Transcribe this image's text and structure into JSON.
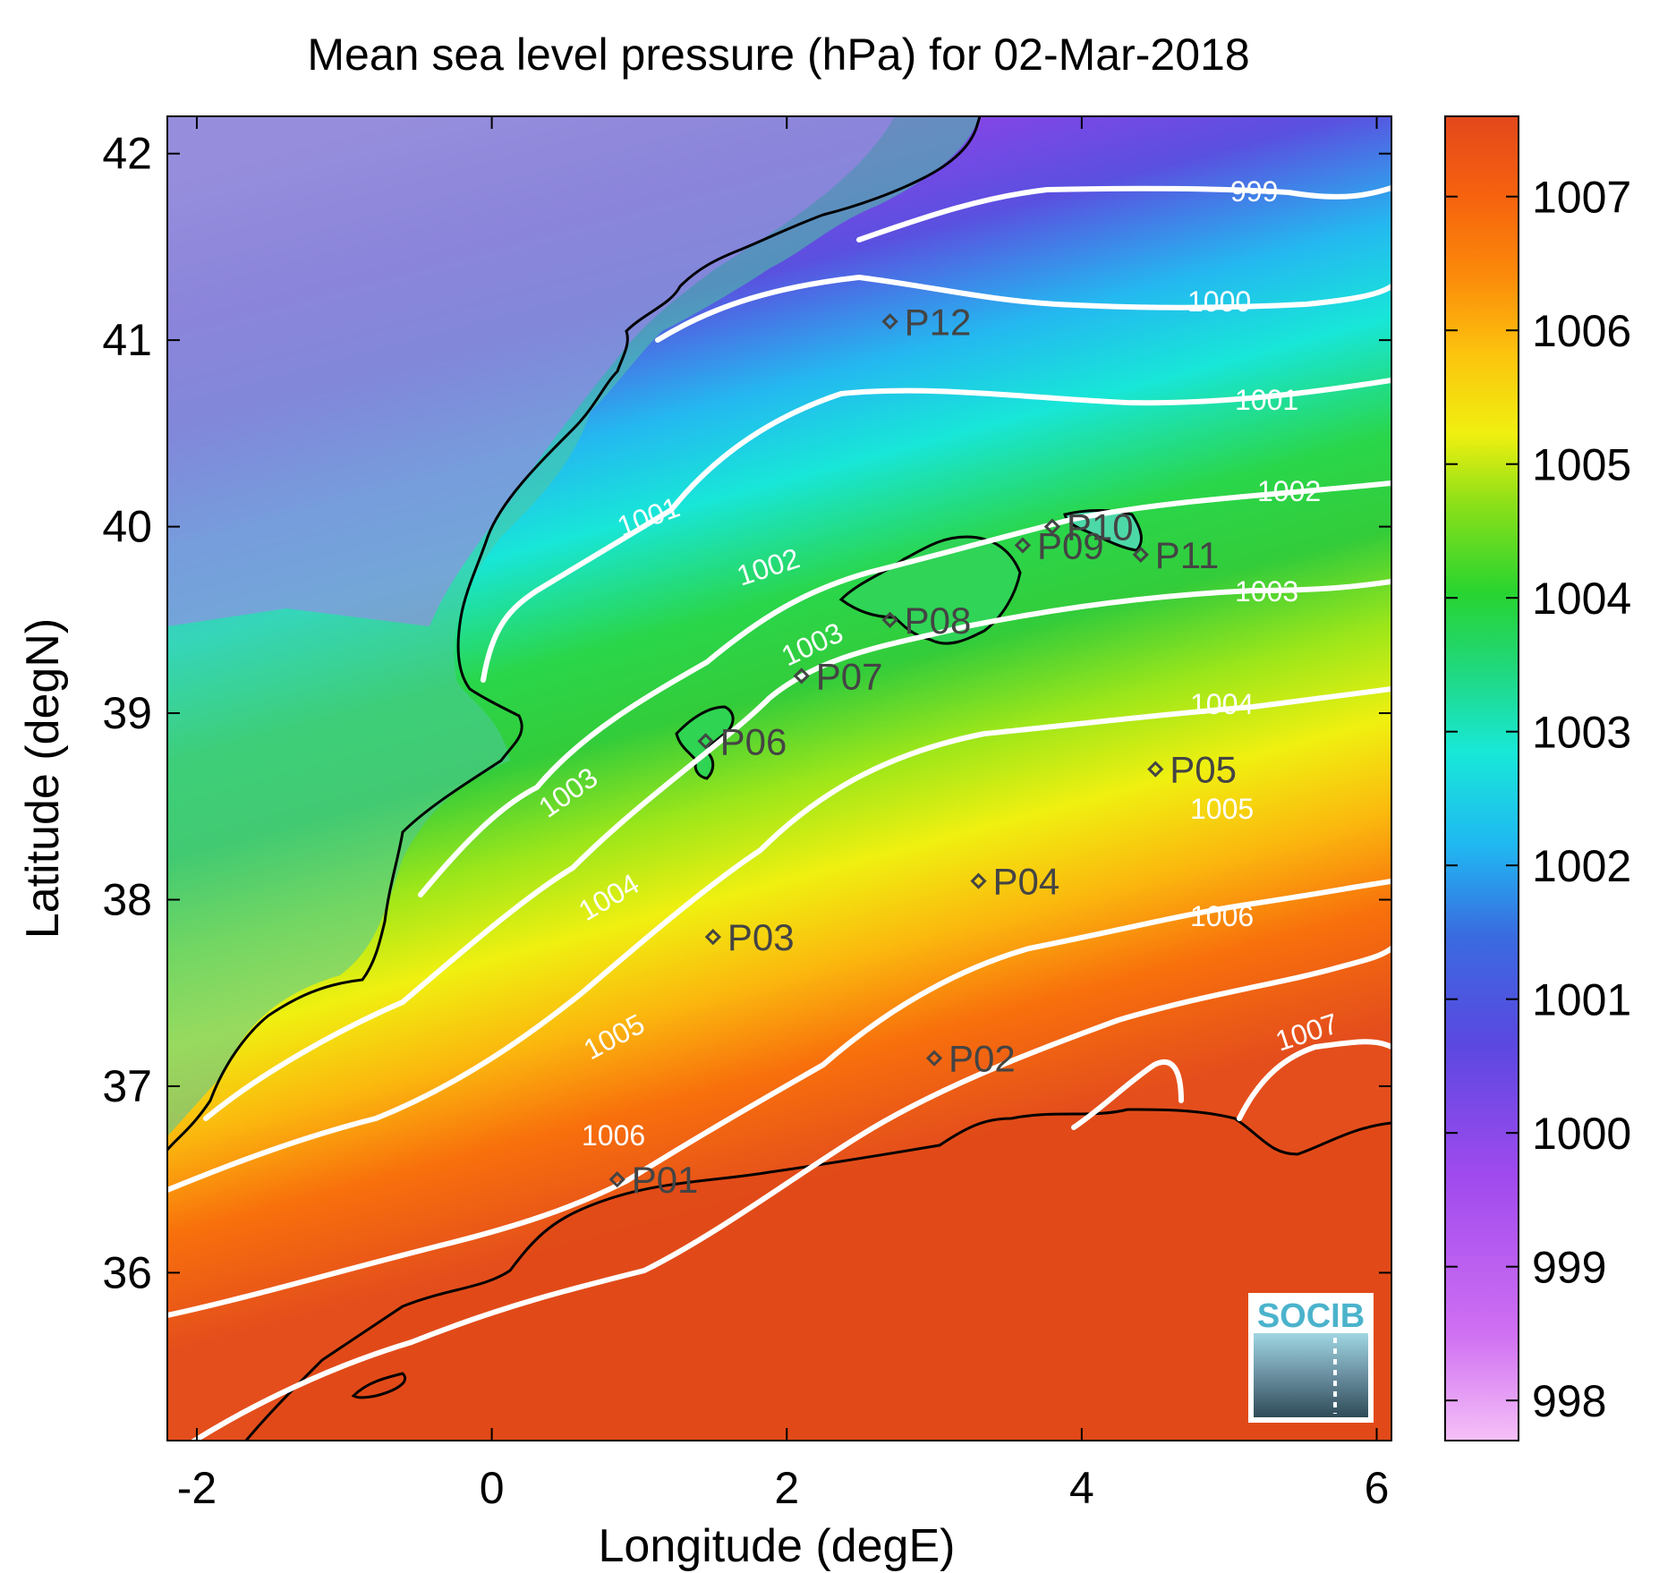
{
  "title": "Mean sea level pressure (hPa) for 02-Mar-2018",
  "x_axis": {
    "label": "Longitude (degE)",
    "ticks": [
      "-2",
      "0",
      "2",
      "4",
      "6"
    ],
    "tick_values": [
      -2,
      0,
      2,
      4,
      6
    ]
  },
  "y_axis": {
    "label": "Latitude (degN)",
    "ticks": [
      "36",
      "37",
      "38",
      "39",
      "40",
      "41",
      "42"
    ],
    "tick_values": [
      36,
      37,
      38,
      39,
      40,
      41,
      42
    ]
  },
  "lon_range": [
    -2.2,
    6.1
  ],
  "lat_range": [
    35.1,
    42.2
  ],
  "colorbar": {
    "ticks": [
      "998",
      "999",
      "1000",
      "1001",
      "1002",
      "1003",
      "1004",
      "1005",
      "1006",
      "1007"
    ],
    "tick_values": [
      998,
      999,
      1000,
      1001,
      1002,
      1003,
      1004,
      1005,
      1006,
      1007
    ],
    "range": [
      997.7,
      1007.6
    ],
    "colors": [
      "#f2b4f6",
      "#c65af0",
      "#8a3ee6",
      "#4d4fd8",
      "#1fa3f0",
      "#16e8dc",
      "#27d63c",
      "#7fe11a",
      "#f2f20e",
      "#fbb00d",
      "#f96b0b",
      "#e24a1c"
    ]
  },
  "contour_labels": [
    "999",
    "1000",
    "1001",
    "1001",
    "1002",
    "1002",
    "1003",
    "1003",
    "1003",
    "1004",
    "1004",
    "1005",
    "1005",
    "1006",
    "1006",
    "1007"
  ],
  "stations": [
    {
      "name": "P01",
      "lon": 0.85,
      "lat": 36.5
    },
    {
      "name": "P02",
      "lon": 3.0,
      "lat": 37.15
    },
    {
      "name": "P03",
      "lon": 1.5,
      "lat": 37.8
    },
    {
      "name": "P04",
      "lon": 3.3,
      "lat": 38.1
    },
    {
      "name": "P05",
      "lon": 4.5,
      "lat": 38.7
    },
    {
      "name": "P06",
      "lon": 1.45,
      "lat": 38.85
    },
    {
      "name": "P07",
      "lon": 2.1,
      "lat": 39.2
    },
    {
      "name": "P08",
      "lon": 2.7,
      "lat": 39.5
    },
    {
      "name": "P09",
      "lon": 3.6,
      "lat": 39.9
    },
    {
      "name": "P10",
      "lon": 3.8,
      "lat": 40.0
    },
    {
      "name": "P11",
      "lon": 4.4,
      "lat": 39.85
    },
    {
      "name": "P12",
      "lon": 2.7,
      "lat": 41.1
    }
  ],
  "logo": {
    "text": "SOCIB"
  }
}
